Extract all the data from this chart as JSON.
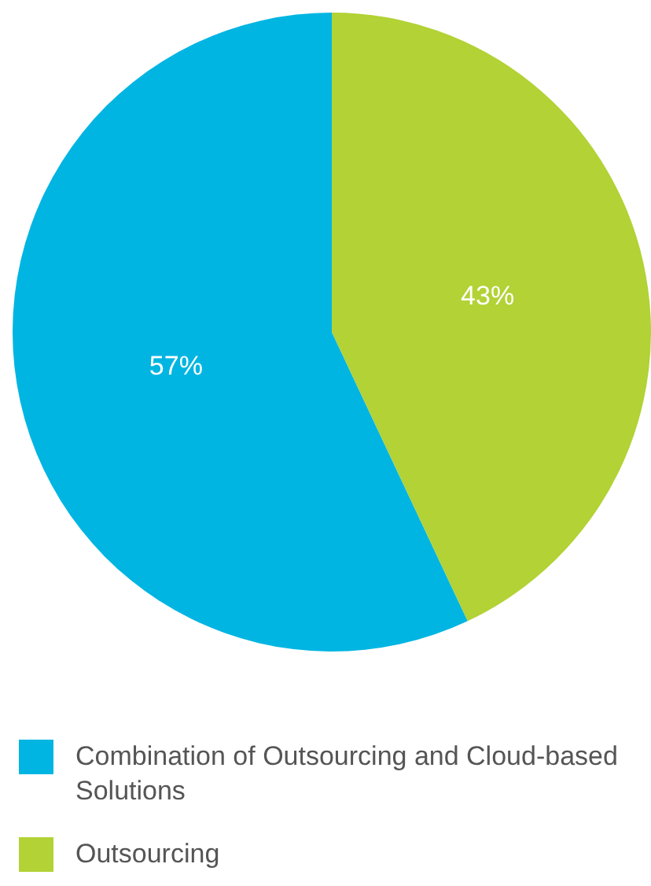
{
  "chart_data": {
    "type": "pie",
    "categories": [
      "Combination of Outsourcing and Cloud-based Solutions",
      "Outsourcing"
    ],
    "values": [
      57,
      43
    ],
    "colors": [
      "#00b5e2",
      "#b2d235"
    ],
    "value_labels": [
      "57%",
      "43%"
    ],
    "legend": "bottom"
  }
}
